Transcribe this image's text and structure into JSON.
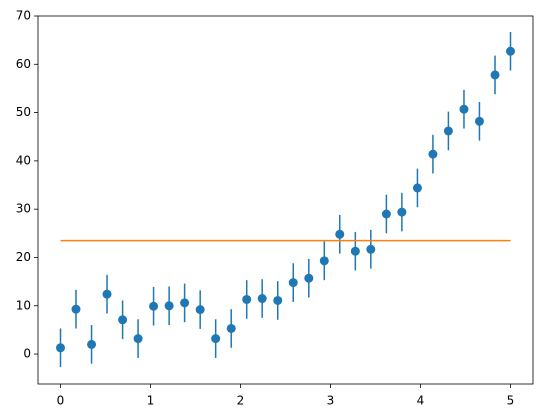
{
  "chart_data": {
    "type": "errorbar",
    "xlim": [
      -0.25,
      5.25
    ],
    "xticks": [
      0,
      1,
      2,
      3,
      4,
      5
    ],
    "ylim": [
      -6.2,
      70
    ],
    "yticks": [
      0,
      10,
      20,
      30,
      40,
      50,
      60,
      70
    ],
    "series": [
      {
        "kind": "errorbar",
        "color": "#1f77b4",
        "x": [
          0,
          0.172,
          0.345,
          0.517,
          0.69,
          0.862,
          1.034,
          1.207,
          1.379,
          1.552,
          1.724,
          1.897,
          2.069,
          2.241,
          2.414,
          2.586,
          2.759,
          2.931,
          3.103,
          3.276,
          3.448,
          3.621,
          3.793,
          3.966,
          4.138,
          4.31,
          4.483,
          4.655,
          4.828,
          5
        ],
        "values": [
          1.3,
          9.3,
          2.0,
          12.4,
          7.1,
          3.2,
          9.9,
          10.0,
          10.6,
          9.2,
          3.2,
          5.3,
          11.3,
          11.5,
          11.1,
          14.8,
          15.7,
          19.3,
          24.8,
          21.3,
          21.7,
          29.0,
          29.4,
          34.4,
          41.4,
          46.2,
          50.7,
          48.2,
          57.8,
          62.7
        ],
        "errors": [
          4,
          4,
          4,
          4,
          4,
          4,
          4,
          4,
          4,
          4,
          4,
          4,
          4,
          4,
          4,
          4,
          4,
          4,
          4,
          4,
          4,
          4,
          4,
          4,
          4,
          4,
          4,
          4,
          4,
          4
        ]
      },
      {
        "kind": "line",
        "color": "#ff7f0e",
        "x": [
          0,
          5
        ],
        "values": [
          23.5,
          23.5
        ]
      }
    ]
  }
}
